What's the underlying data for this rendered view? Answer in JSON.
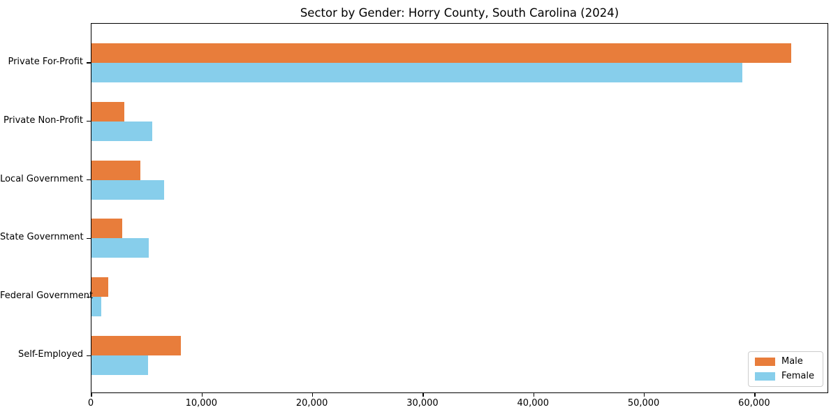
{
  "title": "Sector by Gender: Horry County, South Carolina (2024)",
  "colors": {
    "male": "#E87D3B",
    "female": "#87CEEB",
    "axis": "#000000",
    "legend_border": "#cccccc",
    "background": "#ffffff"
  },
  "legend": {
    "position": "lower right",
    "entries": [
      {
        "label": "Male",
        "color": "#E87D3B"
      },
      {
        "label": "Female",
        "color": "#87CEEB"
      }
    ]
  },
  "chart_data": {
    "type": "bar",
    "orientation": "horizontal",
    "title": "Sector by Gender: Horry County, South Carolina (2024)",
    "categories": [
      "Private For-Profit",
      "Private Non-Profit",
      "Local Government",
      "State Government",
      "Federal Government",
      "Self-Employed"
    ],
    "series": [
      {
        "name": "Male",
        "color": "#E87D3B",
        "values": [
          63400,
          3000,
          4400,
          2800,
          1500,
          8100
        ]
      },
      {
        "name": "Female",
        "color": "#87CEEB",
        "values": [
          59000,
          5500,
          6600,
          5200,
          900,
          5100
        ]
      }
    ],
    "xlabel": "",
    "ylabel": "",
    "xlim": [
      0,
      66700
    ],
    "xticks": [
      0,
      10000,
      20000,
      30000,
      40000,
      50000,
      60000
    ],
    "xtick_labels": [
      "0",
      "10,000",
      "20,000",
      "30,000",
      "40,000",
      "50,000",
      "60,000"
    ],
    "grid": false,
    "legend_position": "lower right"
  }
}
